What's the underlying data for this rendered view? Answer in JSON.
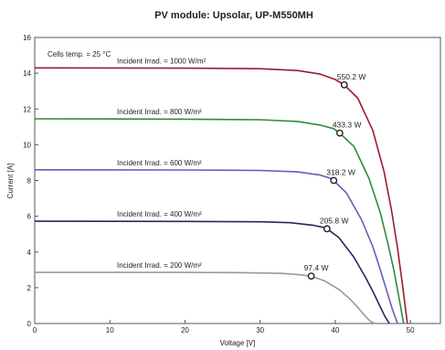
{
  "chart_data": {
    "type": "line",
    "title": "PV module:  Upsolar,  UP-M550MH",
    "xlabel": "Voltage [V]",
    "ylabel": "Current [A]",
    "xlim": [
      0,
      54
    ],
    "ylim": [
      0,
      16
    ],
    "xticks": [
      0,
      10,
      20,
      30,
      40,
      50
    ],
    "yticks": [
      0,
      2,
      4,
      6,
      8,
      10,
      12,
      14,
      16
    ],
    "grid": false,
    "annotation": "Cells temp. = 25 °C",
    "series": [
      {
        "name": "Incident Irrad. = 1000 W/m²",
        "color": "#9b1c2e",
        "x": [
          0,
          20,
          30,
          35,
          38,
          40,
          41.2,
          43,
          45,
          46.5,
          47.5,
          48.3,
          49,
          49.6
        ],
        "y": [
          14.3,
          14.28,
          14.25,
          14.15,
          13.95,
          13.65,
          13.35,
          12.6,
          10.8,
          8.5,
          6.3,
          4.2,
          2.0,
          0
        ],
        "mpp": {
          "x": 41.2,
          "y": 13.35,
          "label": "550.2 W"
        }
      },
      {
        "name": "Incident Irrad. = 800 W/m²",
        "color": "#2e8b3e",
        "x": [
          0,
          20,
          30,
          35,
          38,
          39.8,
          40.6,
          42.5,
          44.5,
          46,
          47,
          47.8,
          48.5,
          49.1
        ],
        "y": [
          11.45,
          11.43,
          11.4,
          11.3,
          11.1,
          10.9,
          10.65,
          9.9,
          8.1,
          6.2,
          4.5,
          3.0,
          1.4,
          0
        ],
        "mpp": {
          "x": 40.6,
          "y": 10.65,
          "label": "433.3 W"
        }
      },
      {
        "name": "Incident Irrad. = 600 W/m²",
        "color": "#6a5bb8",
        "x": [
          0,
          20,
          30,
          35,
          38,
          39.4,
          39.8,
          41.5,
          43.5,
          45,
          46,
          46.8,
          47.6,
          48.3
        ],
        "y": [
          8.6,
          8.59,
          8.56,
          8.48,
          8.3,
          8.12,
          8.0,
          7.3,
          5.8,
          4.3,
          3.0,
          1.9,
          0.8,
          0
        ],
        "mpp": {
          "x": 39.8,
          "y": 8.0,
          "label": "318.2 W"
        }
      },
      {
        "name": "Incident Irrad. = 400 W/m²",
        "color": "#26265e",
        "x": [
          0,
          20,
          30,
          34,
          37,
          38.4,
          38.9,
          40.5,
          42.5,
          44,
          45,
          45.8,
          46.6,
          47.2
        ],
        "y": [
          5.72,
          5.71,
          5.69,
          5.64,
          5.5,
          5.38,
          5.3,
          4.8,
          3.7,
          2.6,
          1.8,
          1.1,
          0.4,
          0
        ],
        "mpp": {
          "x": 38.9,
          "y": 5.3,
          "label": "205.8 W"
        }
      },
      {
        "name": "Incident Irrad. = 200 W/m²",
        "color": "#9a9a9a",
        "x": [
          0,
          20,
          28,
          33,
          35.5,
          36.8,
          38.5,
          40.5,
          42,
          43,
          43.8,
          44.6,
          45.2
        ],
        "y": [
          2.86,
          2.855,
          2.84,
          2.8,
          2.72,
          2.65,
          2.4,
          1.9,
          1.35,
          0.9,
          0.5,
          0.15,
          0
        ],
        "mpp": {
          "x": 36.8,
          "y": 2.65,
          "label": "97.4 W"
        }
      }
    ]
  }
}
